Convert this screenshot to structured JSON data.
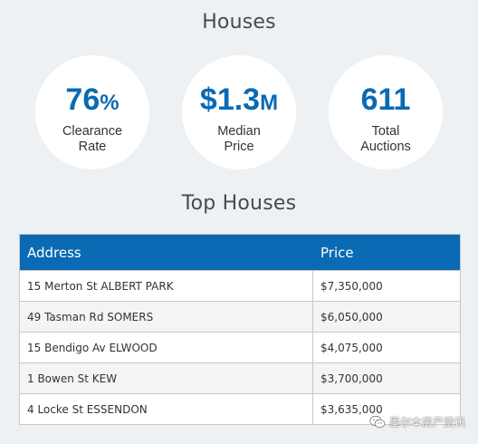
{
  "houses": {
    "title": "Houses",
    "stats": [
      {
        "value": "76",
        "unit": "%",
        "label_line1": "Clearance",
        "label_line2": "Rate"
      },
      {
        "value": "$1.3",
        "unit": "M",
        "label_line1": "Median",
        "label_line2": "Price"
      },
      {
        "value": "611",
        "unit": "",
        "label_line1": "Total",
        "label_line2": "Auctions"
      }
    ]
  },
  "top_houses": {
    "title": "Top Houses",
    "columns": {
      "address": "Address",
      "price": "Price"
    },
    "rows": [
      {
        "address": "15 Merton St ALBERT PARK",
        "price": "$7,350,000"
      },
      {
        "address": "49 Tasman Rd SOMERS",
        "price": "$6,050,000"
      },
      {
        "address": "15 Bendigo Av ELWOOD",
        "price": "$4,075,000"
      },
      {
        "address": "1 Bowen St KEW",
        "price": "$3,700,000"
      },
      {
        "address": "4 Locke St ESSENDON",
        "price": "$3,635,000"
      }
    ]
  },
  "watermark": {
    "icon": "wechat-icon",
    "text": "墨尔本房产资讯"
  },
  "colors": {
    "accent": "#0a6ab4",
    "background": "#eef1f4"
  }
}
